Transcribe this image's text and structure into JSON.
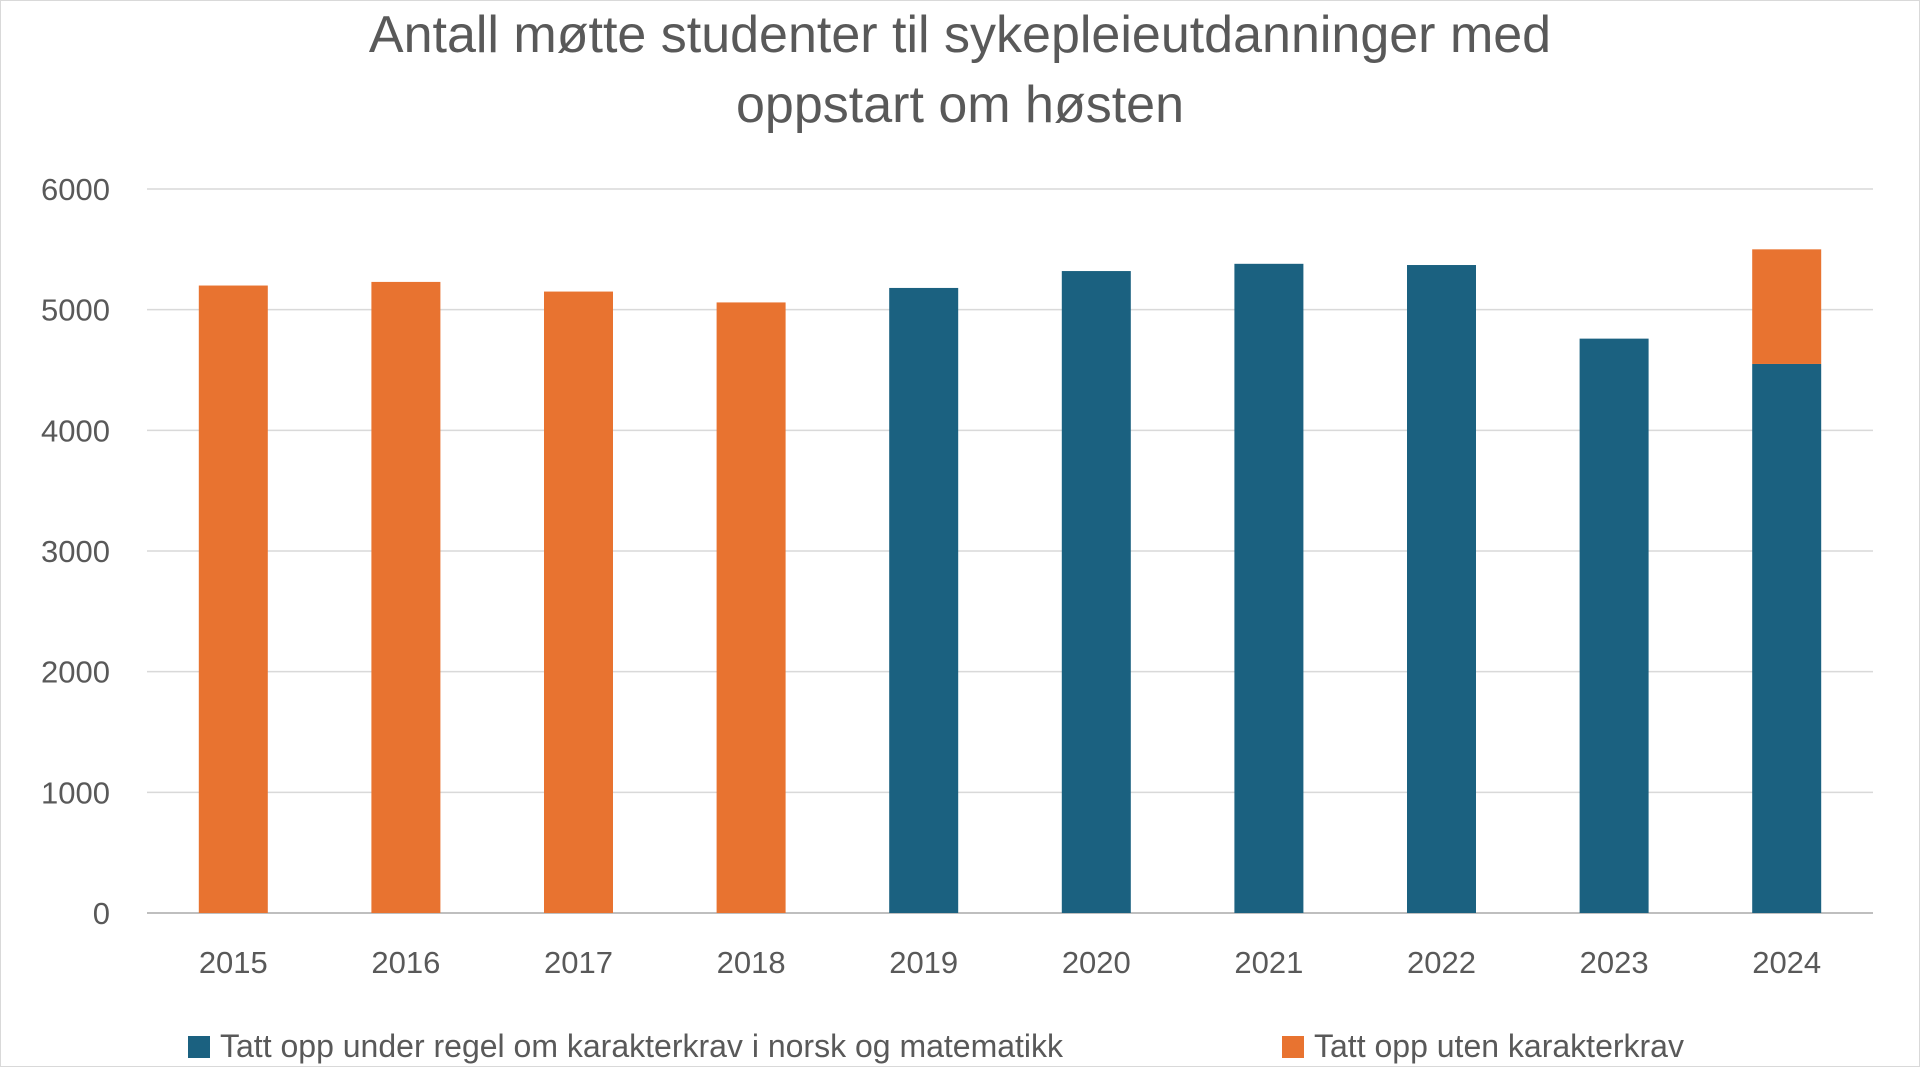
{
  "chart_data": {
    "type": "bar",
    "stacked": true,
    "title_lines": [
      "Antall møtte studenter til sykepleieutdanninger med",
      "oppstart om høsten"
    ],
    "categories": [
      "2015",
      "2016",
      "2017",
      "2018",
      "2019",
      "2020",
      "2021",
      "2022",
      "2023",
      "2024"
    ],
    "series": [
      {
        "name": "Tatt opp under regel om karakterkrav i norsk og matematikk",
        "color": "#1b6180",
        "values": [
          0,
          0,
          0,
          0,
          5180,
          5320,
          5380,
          5370,
          4760,
          4550
        ]
      },
      {
        "name": "Tatt opp uten karakterkrav",
        "color": "#e87330",
        "values": [
          5200,
          5230,
          5150,
          5060,
          0,
          0,
          0,
          0,
          0,
          950
        ]
      }
    ],
    "yticks": [
      "0",
      "1000",
      "2000",
      "3000",
      "4000",
      "5000",
      "6000"
    ],
    "ylim": [
      0,
      6000
    ],
    "grid": true,
    "legend_position": "bottom"
  }
}
